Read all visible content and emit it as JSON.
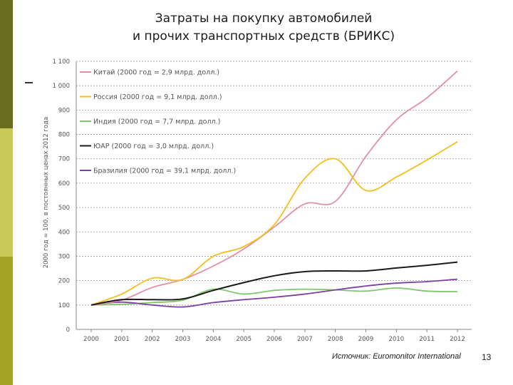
{
  "slide": {
    "title_line1": "Затраты на покупку автомобилей",
    "title_line2": "и прочих транспортных средств (БРИКС)",
    "source": "Источник: Euromonitor International",
    "page_number": "13"
  },
  "chart_data": {
    "type": "line",
    "ylabel": "2000 год = 100, в постоянных ценах 2012 года",
    "xlabel": "",
    "ylim": [
      0,
      1100
    ],
    "yticks": [
      0,
      100,
      200,
      300,
      400,
      500,
      600,
      700,
      800,
      900,
      1000,
      1100
    ],
    "ytick_labels": [
      "0",
      "100",
      "200",
      "300",
      "400",
      "500",
      "600",
      "700",
      "800",
      "900",
      "1 000",
      "1 100"
    ],
    "x": [
      "2000",
      "2001",
      "2002",
      "2003",
      "2004",
      "2005",
      "2006",
      "2007",
      "2008",
      "2009",
      "2010",
      "2011",
      "2012"
    ],
    "grid": true,
    "legend_position": "top-left",
    "series": [
      {
        "name": "Китай (2000 год = 2,9 млрд. долл.)",
        "color": "#e28fa8",
        "values": [
          100,
          120,
          172,
          205,
          260,
          330,
          420,
          515,
          525,
          710,
          860,
          950,
          1060
        ]
      },
      {
        "name": "Россия (2000 год = 9,1 млрд. долл.)",
        "color": "#f5bf1a",
        "values": [
          100,
          145,
          210,
          205,
          300,
          340,
          430,
          620,
          700,
          570,
          625,
          695,
          770
        ]
      },
      {
        "name": "Индия (2000 год = 7,7 млрд. долл.)",
        "color": "#7fc86a",
        "values": [
          100,
          103,
          110,
          120,
          165,
          145,
          160,
          165,
          162,
          157,
          170,
          157,
          155
        ]
      },
      {
        "name": "ЮАР (2000 год = 3,0 млрд. долл.)",
        "color": "#1a1a1a",
        "values": [
          100,
          122,
          122,
          125,
          160,
          192,
          220,
          237,
          240,
          240,
          252,
          263,
          276
        ]
      },
      {
        "name": "Бразилия (2000 год = 39,1 млрд. долл.)",
        "color": "#7b3fa5",
        "values": [
          100,
          112,
          100,
          92,
          110,
          122,
          132,
          145,
          162,
          178,
          190,
          196,
          206
        ]
      }
    ]
  }
}
